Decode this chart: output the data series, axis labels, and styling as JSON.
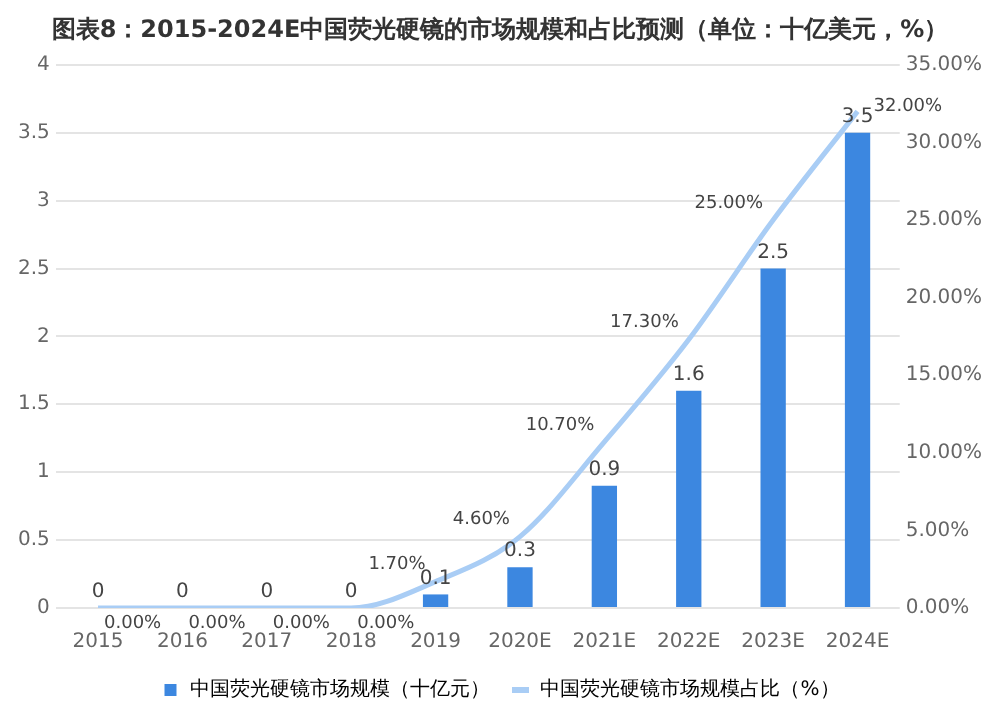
{
  "chart_data": {
    "type": "bar",
    "title": "图表8：2015-2024E中国荧光硬镜的市场规模和占比预测（单位：十亿美元，%）",
    "categories": [
      "2015",
      "2016",
      "2017",
      "2018",
      "2019",
      "2020E",
      "2021E",
      "2022E",
      "2023E",
      "2024E"
    ],
    "series": [
      {
        "name": "中国荧光硬镜市场规模（十亿元）",
        "type": "bar",
        "color": "#3c87e0",
        "values": [
          0,
          0,
          0,
          0,
          0.1,
          0.3,
          0.9,
          1.6,
          2.5,
          3.5
        ],
        "value_labels": [
          "0",
          "0",
          "0",
          "0",
          "0.1",
          "0.3",
          "0.9",
          "1.6",
          "2.5",
          "3.5"
        ]
      },
      {
        "name": "中国荧光硬镜市场规模占比（%）",
        "type": "line",
        "axis": "y2",
        "color": "#a9cdf5",
        "values": [
          0,
          0,
          0,
          0,
          1.7,
          4.6,
          10.7,
          17.3,
          25,
          32
        ],
        "value_labels": [
          "0.00%",
          "0.00%",
          "0.00%",
          "0.00%",
          "1.70%",
          "4.60%",
          "10.70%",
          "17.30%",
          "25.00%",
          "32.00%"
        ]
      }
    ],
    "ylim": [
      0,
      4
    ],
    "yticks": [
      0,
      0.5,
      1,
      1.5,
      2,
      2.5,
      3,
      3.5,
      4
    ],
    "y2lim": [
      0,
      35
    ],
    "y2ticks": [
      {
        "value": 0,
        "label": "0.00%"
      },
      {
        "value": 5,
        "label": "5.00%"
      },
      {
        "value": 10,
        "label": "10.00%"
      },
      {
        "value": 15,
        "label": "15.00%"
      },
      {
        "value": 20,
        "label": "20.00%"
      },
      {
        "value": 25,
        "label": "25.00%"
      },
      {
        "value": 30,
        "label": "30.00%"
      },
      {
        "value": 35,
        "label": "35.00%"
      }
    ],
    "grid": "y",
    "legend": "bottom",
    "marker": "none"
  }
}
